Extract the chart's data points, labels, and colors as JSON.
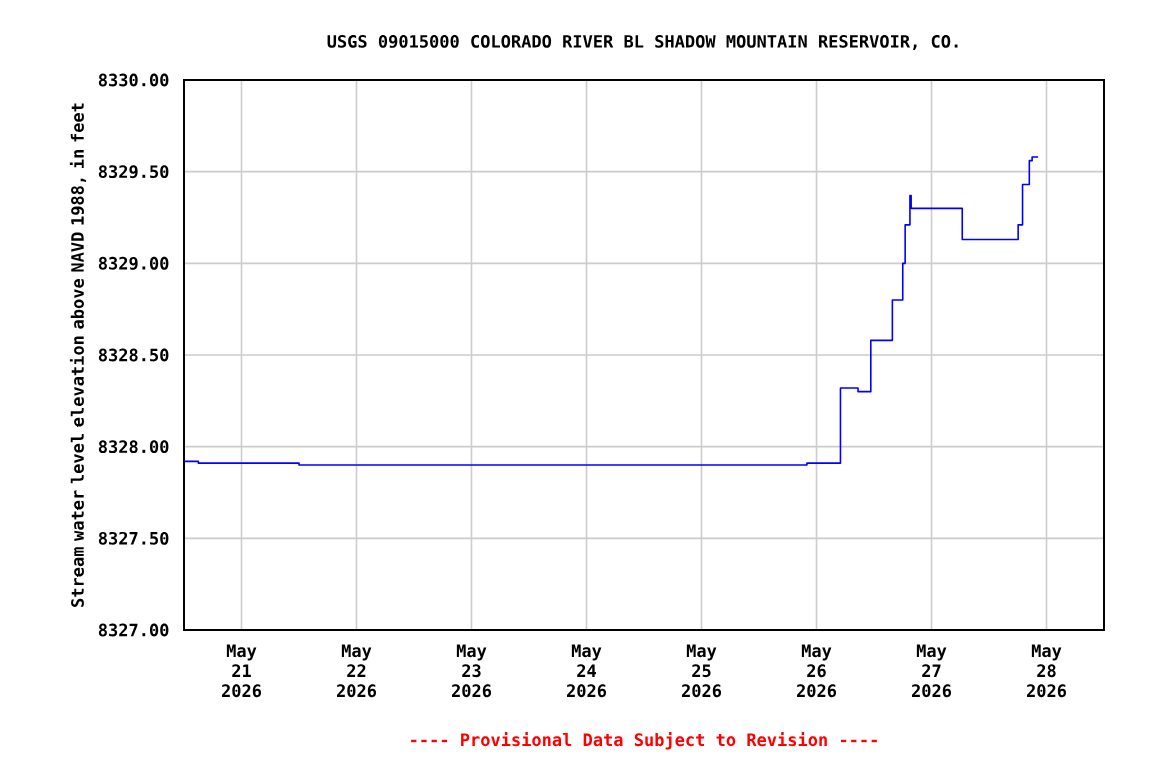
{
  "chart_data": {
    "type": "step",
    "title": "USGS 09015000 COLORADO RIVER BL SHADOW MOUNTAIN RESERVOIR, CO.",
    "ylabel": "Stream water level elevation above NAVD 1988, in feet",
    "annotations": [
      "---- Provisional Data Subject to Revision ----"
    ],
    "x": [
      "2026-05-20T12:00",
      "2026-05-20T15:00",
      "2026-05-21T12:00",
      "2026-05-25T22:00",
      "2026-05-26T05:00",
      "2026-05-26T08:40",
      "2026-05-26T11:20",
      "2026-05-26T15:50",
      "2026-05-26T18:00",
      "2026-05-26T18:30",
      "2026-05-26T19:30",
      "2026-05-26T19:45",
      "2026-05-27T06:25",
      "2026-05-27T18:05",
      "2026-05-27T19:00",
      "2026-05-27T20:25",
      "2026-05-27T21:00",
      "2026-05-27T22:15"
    ],
    "series": [
      {
        "color": "#0000ff",
        "values": [
          8327.92,
          8327.91,
          8327.9,
          8327.91,
          8328.32,
          8328.3,
          8328.58,
          8328.8,
          8329.0,
          8329.21,
          8329.37,
          8329.3,
          8329.13,
          8329.21,
          8329.43,
          8329.56,
          8329.58,
          8329.58
        ]
      }
    ],
    "xlim": [
      "2026-05-20T12:00",
      "2026-05-28T12:00"
    ],
    "xticks": [
      {
        "value": "2026-05-21",
        "label": "May 21 2026"
      },
      {
        "value": "2026-05-22",
        "label": "May 22 2026"
      },
      {
        "value": "2026-05-23",
        "label": "May 23 2026"
      },
      {
        "value": "2026-05-24",
        "label": "May 24 2026"
      },
      {
        "value": "2026-05-25",
        "label": "May 25 2026"
      },
      {
        "value": "2026-05-26",
        "label": "May 26 2026"
      },
      {
        "value": "2026-05-27",
        "label": "May 27 2026"
      },
      {
        "value": "2026-05-28",
        "label": "May 28 2026"
      }
    ],
    "ylim": [
      8327,
      8330
    ],
    "yticks": [
      {
        "value": 8327,
        "label": "8327.00"
      },
      {
        "value": 8327.5,
        "label": "8327.50"
      },
      {
        "value": 8328,
        "label": "8328.00"
      },
      {
        "value": 8328.5,
        "label": "8328.50"
      },
      {
        "value": 8329,
        "label": "8329.00"
      },
      {
        "value": 8329.5,
        "label": "8329.50"
      },
      {
        "value": 8330,
        "label": "8330.00"
      }
    ],
    "grid": true,
    "marker": "none",
    "line_style": "solid"
  }
}
